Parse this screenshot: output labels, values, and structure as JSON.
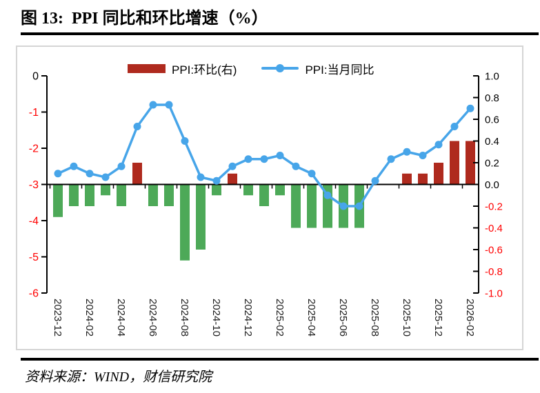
{
  "title": "图 13:  PPI 同比和环比增速（%）",
  "source": "资料来源：WIND，财信研究院",
  "legend": {
    "bar_label": "PPI:环比(右)",
    "line_label": "PPI:当月同比"
  },
  "colors": {
    "line": "#47A5E9",
    "bar_positive": "#AF2A1E",
    "bar_negative": "#4DA958",
    "tick_negative": "#FF0000",
    "tick_default": "#000000",
    "axis": "#000000",
    "frame_border": "#D5D5D5"
  },
  "chart_data": {
    "type": "bar+line combo, dual axis",
    "categories": [
      "2023-12",
      "2024-01",
      "2024-02",
      "2024-03",
      "2024-04",
      "2024-05",
      "2024-06",
      "2024-07",
      "2024-08",
      "2024-09",
      "2024-10",
      "2024-11",
      "2024-12",
      "2025-01",
      "2025-02",
      "2025-03",
      "2025-04",
      "2025-05",
      "2025-06",
      "2025-07",
      "2025-08",
      "2025-09",
      "2025-10",
      "2025-11",
      "2025-12",
      "2026-01",
      "2026-02"
    ],
    "series": [
      {
        "name": "PPI:环比(右)",
        "type": "bar",
        "axis": "right",
        "values": [
          -0.3,
          -0.2,
          -0.2,
          -0.1,
          -0.2,
          0.2,
          -0.2,
          -0.2,
          -0.7,
          -0.6,
          -0.1,
          0.1,
          -0.1,
          -0.2,
          -0.1,
          -0.4,
          -0.4,
          -0.4,
          -0.4,
          -0.4,
          0.0,
          0.0,
          0.1,
          0.1,
          0.2,
          0.4,
          0.4
        ]
      },
      {
        "name": "PPI:当月同比",
        "type": "line",
        "axis": "left",
        "values": [
          -2.7,
          -2.5,
          -2.7,
          -2.8,
          -2.5,
          -1.4,
          -0.8,
          -0.8,
          -1.8,
          -2.8,
          -2.9,
          -2.5,
          -2.3,
          -2.3,
          -2.2,
          -2.5,
          -2.7,
          -3.3,
          -3.6,
          -3.6,
          -2.9,
          -2.3,
          -2.1,
          -2.2,
          -1.9,
          -1.4,
          -0.9
        ]
      }
    ],
    "left_axis": {
      "min": -6,
      "max": 0,
      "tick_labels": [
        "0",
        "-1",
        "-2",
        "-3",
        "-4",
        "-5",
        "-6"
      ]
    },
    "right_axis": {
      "min": -1.0,
      "max": 1.0,
      "tick_labels": [
        "1.0",
        "0.8",
        "0.6",
        "0.4",
        "0.2",
        "0.0",
        "-0.2",
        "-0.4",
        "-0.6",
        "-0.8",
        "-1.0"
      ]
    },
    "x_tick_labels": [
      "2023-12",
      "2024-02",
      "2024-04",
      "2024-06",
      "2024-08",
      "2024-10",
      "2024-12",
      "2025-02",
      "2025-04",
      "2025-06",
      "2025-08",
      "2025-10",
      "2025-12",
      "2026-02"
    ],
    "alignment_note": "right axis 0.0 sits on left axis -3; bars plotted on right axis, line on left axis",
    "grid": false,
    "legend_position": "top-center"
  }
}
